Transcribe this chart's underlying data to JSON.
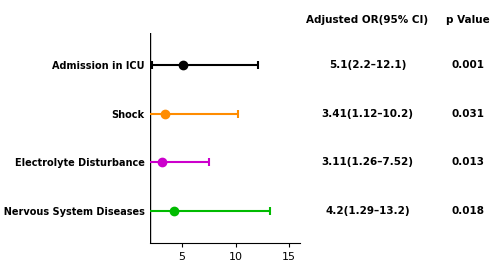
{
  "categories": [
    "Admission in ICU",
    "Shock",
    "Electrolyte Disturbance",
    "Central Nervous System Diseases"
  ],
  "or_values": [
    5.1,
    3.41,
    3.11,
    4.2
  ],
  "ci_lower": [
    2.2,
    1.12,
    1.26,
    1.29
  ],
  "ci_upper": [
    12.1,
    10.2,
    7.52,
    13.2
  ],
  "colors": [
    "#000000",
    "#FF8C00",
    "#CC00CC",
    "#00BB00"
  ],
  "p_values": [
    "0.001",
    "0.031",
    "0.013",
    "0.018"
  ],
  "or_labels": [
    "5.1(2.2–12.1)",
    "3.41(1.12–10.2)",
    "3.11(1.26–7.52)",
    "4.2(1.29–13.2)"
  ],
  "xlim": [
    2,
    16
  ],
  "xticks": [
    5,
    10,
    15
  ],
  "header_or": "Adjusted OR(95% CI)",
  "header_p": "p Value",
  "figsize": [
    5.0,
    2.79
  ],
  "dpi": 100,
  "marker_size": 6,
  "linewidth": 1.5,
  "capsize": 3
}
